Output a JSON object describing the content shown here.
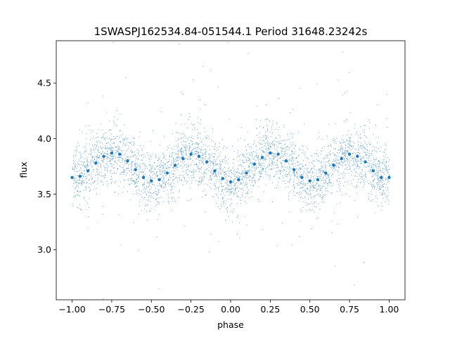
{
  "chart_data": {
    "type": "scatter",
    "title": "1SWASPJ162534.84-051544.1 Period 31648.23242s",
    "xlabel": "phase",
    "ylabel": "flux",
    "xlim": [
      -1.1,
      1.1
    ],
    "ylim": [
      2.55,
      4.88
    ],
    "xticks": [
      -1.0,
      -0.75,
      -0.5,
      -0.25,
      0.0,
      0.25,
      0.5,
      0.75,
      1.0
    ],
    "xtick_labels": [
      "−1.00",
      "−0.75",
      "−0.50",
      "−0.25",
      "0.00",
      "0.25",
      "0.50",
      "0.75",
      "1.00"
    ],
    "yticks": [
      3.0,
      3.5,
      4.0,
      4.5
    ],
    "ytick_labels": [
      "3.0",
      "3.5",
      "4.0",
      "4.5"
    ],
    "grid": false,
    "legend": "none",
    "marker_color": "#1f77b4",
    "series": [
      {
        "x": [
          -1.0,
          -0.95,
          -0.9,
          -0.85,
          -0.8,
          -0.75,
          -0.7,
          -0.65,
          -0.6,
          -0.55,
          -0.5,
          -0.45,
          -0.4,
          -0.35,
          -0.3,
          -0.25,
          -0.2,
          -0.15,
          -0.1,
          -0.05,
          0.0,
          0.05,
          0.1,
          0.15,
          0.2,
          0.25,
          0.3,
          0.35,
          0.4,
          0.45,
          0.5,
          0.55,
          0.6,
          0.65,
          0.7,
          0.75,
          0.8,
          0.85,
          0.9,
          0.95,
          1.0
        ],
        "y": [
          3.65,
          3.66,
          3.71,
          3.78,
          3.84,
          3.87,
          3.86,
          3.8,
          3.72,
          3.65,
          3.62,
          3.63,
          3.69,
          3.76,
          3.82,
          3.86,
          3.84,
          3.79,
          3.71,
          3.64,
          3.61,
          3.63,
          3.69,
          3.77,
          3.83,
          3.87,
          3.86,
          3.8,
          3.72,
          3.65,
          3.62,
          3.63,
          3.69,
          3.76,
          3.82,
          3.86,
          3.84,
          3.79,
          3.71,
          3.65,
          3.65
        ]
      }
    ]
  }
}
